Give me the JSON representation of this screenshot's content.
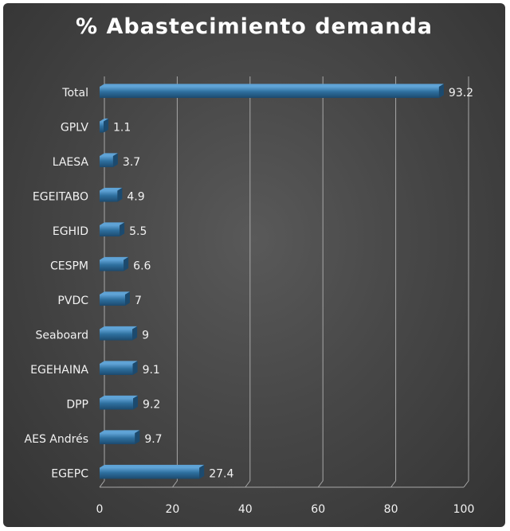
{
  "chart_data": {
    "type": "bar",
    "orientation": "horizontal",
    "title": "% Abastecimiento demanda",
    "categories": [
      "Total",
      "GPLV",
      "LAESA",
      "EGEITABO",
      "EGHID",
      "CESPM",
      "PVDC",
      "Seaboard",
      "EGEHAINA",
      "DPP",
      "AES Andrés",
      "EGEPC"
    ],
    "values": [
      93.2,
      1.1,
      3.7,
      4.9,
      5.5,
      6.6,
      7,
      9,
      9.1,
      9.2,
      9.7,
      27.4
    ],
    "value_labels": [
      "93.2",
      "1.1",
      "3.7",
      "4.9",
      "5.5",
      "6.6",
      "7",
      "9",
      "9.1",
      "9.2",
      "9.7",
      "27.4"
    ],
    "xlim": [
      0,
      100
    ],
    "xticks": [
      0,
      20,
      40,
      60,
      80,
      100
    ],
    "xtick_labels": [
      "0",
      "20",
      "40",
      "60",
      "80",
      "100"
    ],
    "grid": true,
    "legend": "none",
    "colors": {
      "bar": "#2e6f9e",
      "bar_top": "#5fa3d6",
      "bar_side": "#1c4a6e",
      "background": "#474747",
      "grid": "#a8a8a8",
      "text": "#f2f2f2"
    }
  }
}
